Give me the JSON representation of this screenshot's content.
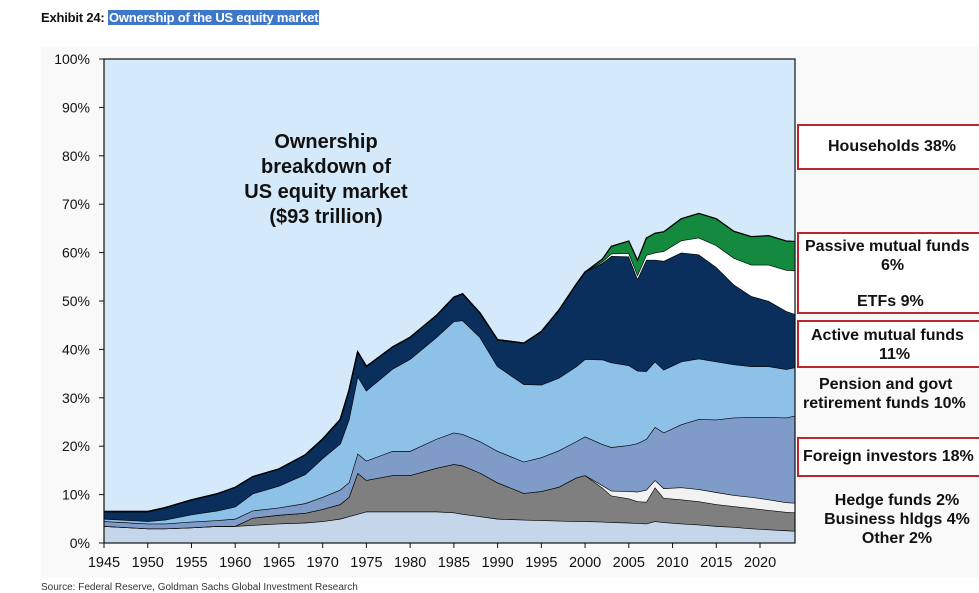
{
  "header": {
    "exhibit_label": "Exhibit 24:",
    "exhibit_title": "Ownership of the US equity market"
  },
  "source": "Source: Federal Reserve, Goldman Sachs Global Investment Research",
  "chart_data": {
    "type": "area",
    "stacked": true,
    "inset_title": [
      "Ownership",
      "breakdown  of",
      "US equity market",
      "($93 trillion)"
    ],
    "ylim": [
      0,
      100
    ],
    "y_ticks": [
      "0%",
      "10%",
      "20%",
      "30%",
      "40%",
      "50%",
      "60%",
      "70%",
      "80%",
      "90%",
      "100%"
    ],
    "xlim": [
      1945,
      2024
    ],
    "x_ticks": [
      "1945",
      "1950",
      "1955",
      "1960",
      "1965",
      "1970",
      "1975",
      "1980",
      "1985",
      "1990",
      "1995",
      "2000",
      "2005",
      "2010",
      "2015",
      "2020"
    ],
    "x": [
      1945,
      1948,
      1950,
      1952,
      1955,
      1958,
      1960,
      1962,
      1965,
      1968,
      1970,
      1972,
      1973,
      1974,
      1975,
      1978,
      1980,
      1983,
      1985,
      1986,
      1988,
      1990,
      1993,
      1995,
      1997,
      1999,
      2000,
      2002,
      2003,
      2005,
      2006,
      2007,
      2008,
      2009,
      2011,
      2013,
      2015,
      2017,
      2019,
      2021,
      2023,
      2024
    ],
    "series": [
      {
        "name": "Other 2%",
        "color": "#c5d6ea",
        "values": [
          3.5,
          3.2,
          3.0,
          3.0,
          3.2,
          3.5,
          3.5,
          3.7,
          4.0,
          4.2,
          4.5,
          5.0,
          5.5,
          6.0,
          6.5,
          6.5,
          6.5,
          6.5,
          6.3,
          6.0,
          5.5,
          5.0,
          4.8,
          4.7,
          4.6,
          4.5,
          4.5,
          4.4,
          4.3,
          4.2,
          4.1,
          4.0,
          4.5,
          4.3,
          4.0,
          3.8,
          3.5,
          3.3,
          3.0,
          2.8,
          2.6,
          2.5
        ]
      },
      {
        "name": "Business hldgs 4%",
        "color": "#7f7f7f",
        "values": [
          0,
          0,
          0,
          0,
          0,
          0,
          0,
          1.5,
          1.8,
          2.0,
          2.5,
          3.0,
          4.0,
          8.5,
          6.5,
          7.5,
          7.5,
          9.0,
          10.0,
          10.0,
          9.0,
          7.5,
          5.5,
          6.0,
          7.0,
          9.0,
          9.5,
          7.0,
          5.5,
          5.0,
          4.5,
          4.5,
          7.0,
          5.0,
          5.0,
          4.8,
          4.5,
          4.3,
          4.2,
          4.0,
          3.8,
          3.8
        ]
      },
      {
        "name": "Hedge funds 2%",
        "color": "#f2f2f2",
        "values": [
          0,
          0,
          0,
          0,
          0,
          0,
          0,
          0,
          0,
          0,
          0,
          0,
          0,
          0,
          0,
          0,
          0,
          0,
          0,
          0,
          0,
          0,
          0,
          0,
          0,
          0,
          0,
          0.5,
          1.0,
          1.5,
          2.0,
          2.5,
          1.5,
          2.0,
          2.5,
          2.5,
          2.5,
          2.3,
          2.3,
          2.2,
          2.0,
          2.0
        ]
      },
      {
        "name": "Foreign investors 18%",
        "color": "#7e9cc7",
        "values": [
          1.0,
          1.0,
          1.0,
          1.0,
          1.2,
          1.2,
          1.5,
          1.5,
          1.5,
          2.0,
          2.5,
          3.0,
          3.0,
          4.0,
          4.0,
          5.0,
          5.0,
          6.0,
          6.5,
          6.5,
          6.5,
          6.5,
          6.5,
          7.0,
          7.5,
          7.5,
          8.0,
          8.5,
          9.0,
          9.5,
          10.0,
          10.5,
          11.0,
          11.5,
          13.0,
          14.5,
          15.0,
          16.0,
          16.5,
          17.0,
          17.5,
          18.0
        ]
      },
      {
        "name": "Pension and govt retirement funds 10%",
        "color": "#8ec1e8",
        "values": [
          0.5,
          0.5,
          0.5,
          0.8,
          1.5,
          2.0,
          2.5,
          3.5,
          4.5,
          6.0,
          8.0,
          9.5,
          13.0,
          16.0,
          14.5,
          17.0,
          19.0,
          21.0,
          23.0,
          23.5,
          21.5,
          17.5,
          16.0,
          15.0,
          15.0,
          15.5,
          16.0,
          17.5,
          17.5,
          16.5,
          15.0,
          14.0,
          13.5,
          13.0,
          13.0,
          12.5,
          12.0,
          11.0,
          10.5,
          10.5,
          10.0,
          10.0
        ]
      },
      {
        "name": "Active mutual funds 11%",
        "color": "#0b2f5c",
        "values": [
          1.5,
          1.8,
          2.0,
          2.5,
          3.0,
          3.5,
          4.0,
          3.5,
          3.5,
          4.0,
          4.0,
          5.0,
          6.0,
          5.0,
          5.0,
          4.5,
          4.5,
          4.5,
          5.0,
          5.5,
          5.0,
          5.5,
          8.5,
          11.0,
          14.0,
          17.0,
          18.0,
          20.0,
          22.0,
          22.5,
          19.0,
          23.0,
          21.0,
          22.5,
          22.5,
          21.5,
          19.5,
          16.5,
          14.5,
          13.5,
          12.0,
          11.0
        ]
      },
      {
        "name": "ETFs 9%",
        "color": "#ffffff",
        "values": [
          0,
          0,
          0,
          0,
          0,
          0,
          0,
          0,
          0,
          0,
          0,
          0,
          0,
          0,
          0,
          0,
          0,
          0,
          0,
          0,
          0,
          0,
          0,
          0,
          0,
          0,
          0,
          0.3,
          0.5,
          0.7,
          0.8,
          1.0,
          1.5,
          2.0,
          2.5,
          3.5,
          4.5,
          5.5,
          6.5,
          7.5,
          8.5,
          9.0
        ]
      },
      {
        "name": "Passive mutual funds 6%",
        "color": "#148a3e",
        "values": [
          0,
          0,
          0,
          0,
          0,
          0,
          0,
          0,
          0,
          0,
          0,
          0,
          0,
          0,
          0,
          0,
          0,
          0,
          0,
          0,
          0,
          0,
          0,
          0,
          0,
          0,
          0,
          0.5,
          1.5,
          2.5,
          3.0,
          3.5,
          4.0,
          4.0,
          4.5,
          5.0,
          5.5,
          5.5,
          5.8,
          6.0,
          6.0,
          6.0
        ]
      }
    ],
    "legend_labels": {
      "households": "Households 38%",
      "passive": [
        "Passive mutual funds",
        "6%"
      ],
      "etfs": "ETFs 9%",
      "active": [
        "Active mutual funds",
        "11%"
      ],
      "pension": [
        "Pension and govt",
        "retirement funds 10%"
      ],
      "foreign": "Foreign investors 18%",
      "hedge": "Hedge funds 2%",
      "business": "Business hldgs 4%",
      "other": "Other 2%"
    },
    "colors": {
      "households": "#d4e9f9",
      "box_border": "#b6292e",
      "axis": "#111111",
      "outline": "#000000"
    }
  }
}
